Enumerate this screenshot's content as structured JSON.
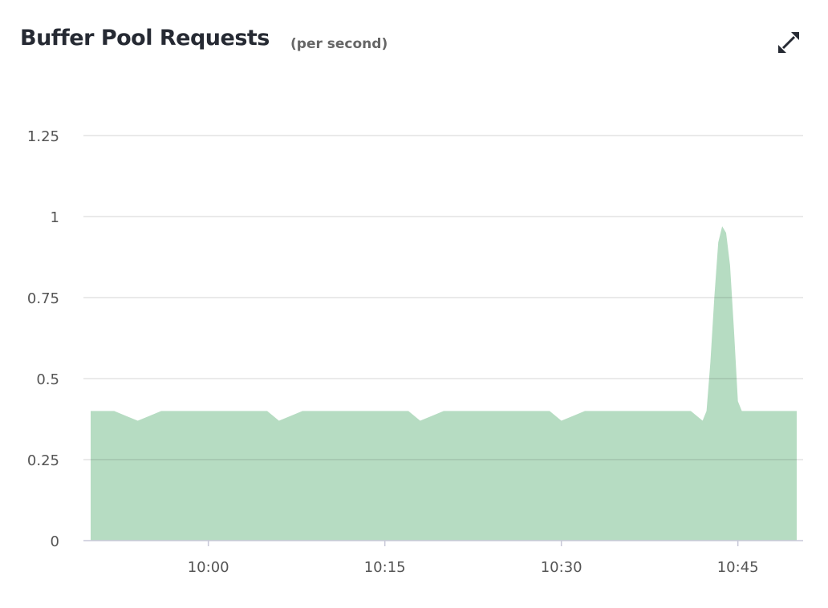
{
  "header": {
    "title": "Buffer Pool Requests",
    "subtitle": "(per second)",
    "expand_icon": "expand-arrows-icon"
  },
  "colors": {
    "area": "#b6dcc2",
    "grid": "#e2e2e2",
    "axis": "#c8c8d8"
  },
  "chart_data": {
    "type": "area",
    "title": "Buffer Pool Requests",
    "subtitle": "(per second)",
    "xlabel": "",
    "ylabel": "",
    "xlim": [
      "09:50:00",
      "10:50:00"
    ],
    "ylim": [
      0,
      1.25
    ],
    "yticks": [
      0,
      0.25,
      0.5,
      0.75,
      1,
      1.25
    ],
    "ytick_labels": [
      "0",
      "0.25",
      "0.5",
      "0.75",
      "1",
      "1.25"
    ],
    "xticks": [
      "10:00:00",
      "10:15:00",
      "10:30:00",
      "10:45:00"
    ],
    "xtick_labels": [
      "10:00",
      "10:15",
      "10:30",
      "10:45"
    ],
    "grid": true,
    "legend": "none",
    "series": [
      {
        "x": [
          "09:50:00",
          "09:52:00",
          "09:53:00",
          "09:54:00",
          "09:55:00",
          "09:56:00",
          "10:05:00",
          "10:06:00",
          "10:07:00",
          "10:08:00",
          "10:17:00",
          "10:18:00",
          "10:19:00",
          "10:20:00",
          "10:29:00",
          "10:30:00",
          "10:31:00",
          "10:32:00",
          "10:41:00",
          "10:42:00",
          "10:42:20",
          "10:42:40",
          "10:43:00",
          "10:43:20",
          "10:43:40",
          "10:44:00",
          "10:44:20",
          "10:44:40",
          "10:45:00",
          "10:45:20",
          "10:45:40",
          "10:50:00"
        ],
        "y": [
          0.4,
          0.4,
          0.385,
          0.37,
          0.385,
          0.4,
          0.4,
          0.37,
          0.385,
          0.4,
          0.4,
          0.37,
          0.385,
          0.4,
          0.4,
          0.37,
          0.385,
          0.4,
          0.4,
          0.37,
          0.4,
          0.55,
          0.75,
          0.92,
          0.97,
          0.95,
          0.85,
          0.65,
          0.43,
          0.4,
          0.4,
          0.4
        ]
      }
    ]
  }
}
